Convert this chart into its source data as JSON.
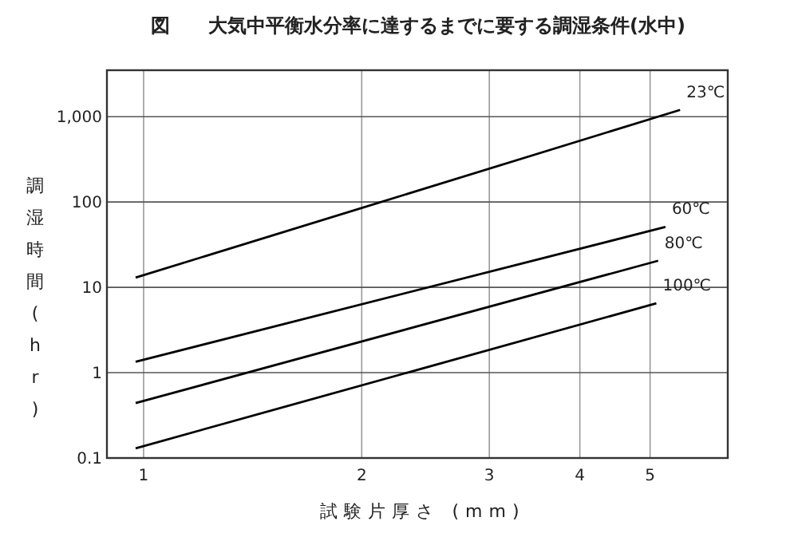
{
  "chart_data": {
    "type": "line",
    "title": "図　　大気中平衡水分率に達するまでに要する調湿条件(水中)",
    "xlabel": "試験片厚さ (mm)",
    "ylabel": "調湿時間(hr)",
    "log": "xy",
    "grid": true,
    "marker": "none",
    "line_style": "solid",
    "xlim": [
      0.89,
      6.4
    ],
    "xticks": [
      1,
      2,
      3,
      4,
      5
    ],
    "ylim": [
      0.1,
      3500
    ],
    "yticks": [
      0.1,
      1,
      10,
      100,
      {
        "value": 1000,
        "label": "1,000"
      }
    ],
    "series": [
      {
        "name": "23℃",
        "color": "#000000",
        "x": [
          0.975,
          5.5
        ],
        "values": [
          13,
          1200
        ]
      },
      {
        "name": "60℃",
        "color": "#000000",
        "x": [
          0.975,
          5.25
        ],
        "values": [
          1.34,
          51
        ]
      },
      {
        "name": "80℃",
        "color": "#000000",
        "x": [
          0.975,
          5.13
        ],
        "values": [
          0.44,
          20.5
        ]
      },
      {
        "name": "100℃",
        "color": "#000000",
        "x": [
          0.975,
          5.1
        ],
        "values": [
          0.13,
          6.5
        ]
      }
    ]
  }
}
